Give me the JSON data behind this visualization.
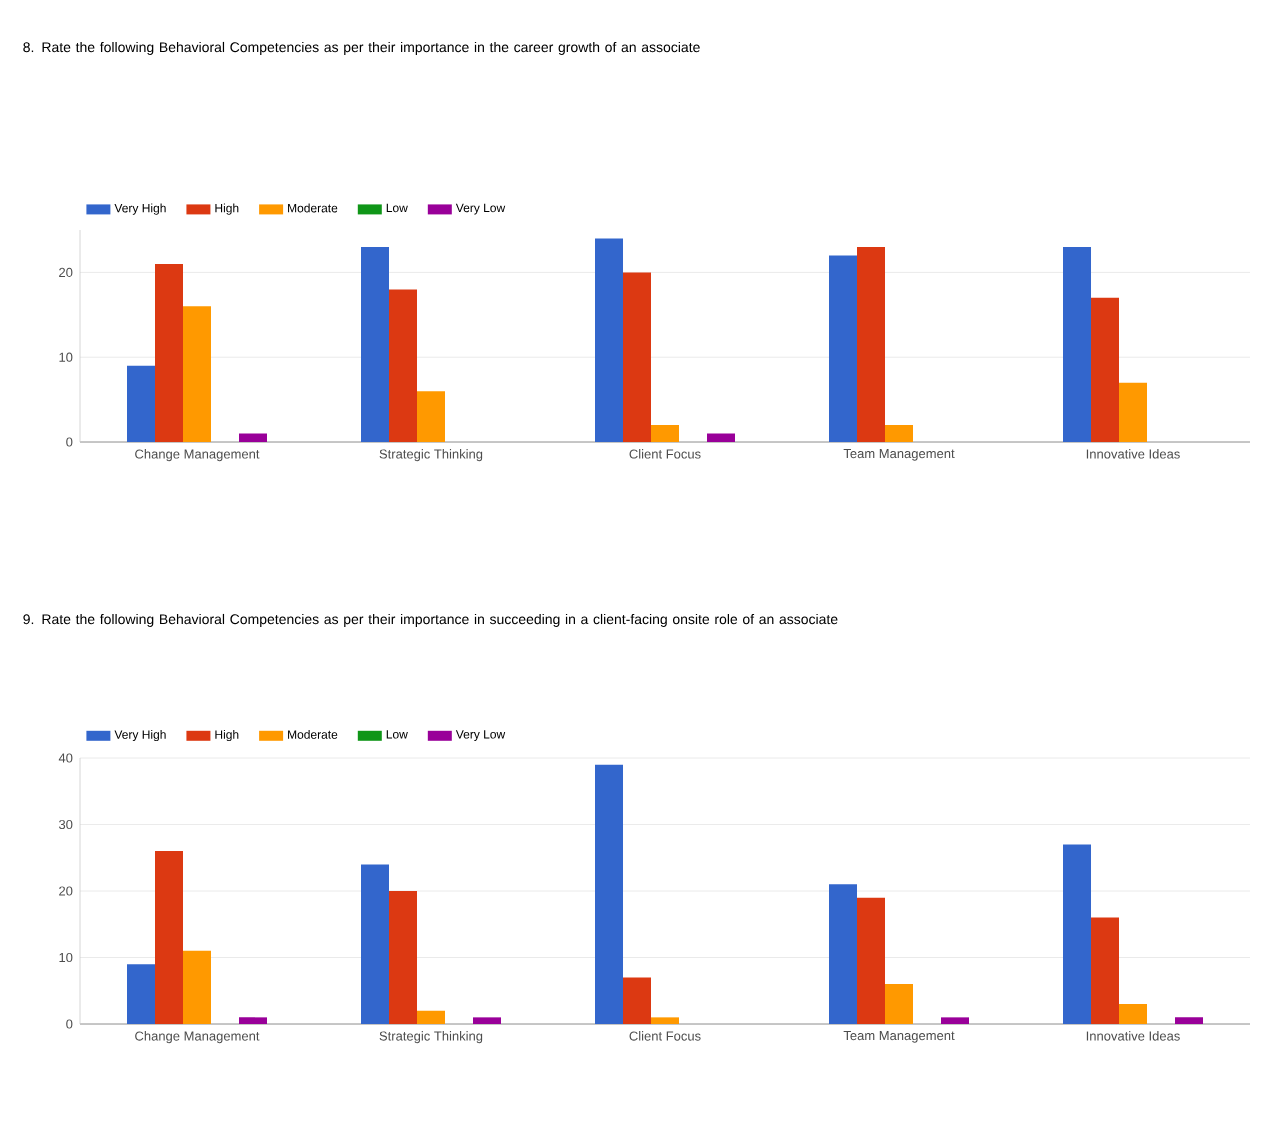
{
  "chart_data": [
    {
      "type": "bar",
      "title": "8. Rate the following Behavioral Competencies as per their importance in the career growth of an associate",
      "categories": [
        "Change Management",
        "Strategic Thinking",
        "Client Focus",
        "Team Management",
        "Innovative Ideas"
      ],
      "series": [
        {
          "name": "Very High",
          "color": "#3366cc",
          "values": [
            9,
            23,
            24,
            22,
            23
          ]
        },
        {
          "name": "High",
          "color": "#dc3912",
          "values": [
            21,
            18,
            20,
            23,
            17
          ]
        },
        {
          "name": "Moderate",
          "color": "#ff9900",
          "values": [
            16,
            6,
            2,
            2,
            7
          ]
        },
        {
          "name": "Low",
          "color": "#109618",
          "values": [
            0,
            0,
            0,
            0,
            0
          ]
        },
        {
          "name": "Very Low",
          "color": "#990099",
          "values": [
            1,
            0,
            1,
            0,
            0
          ]
        }
      ],
      "ylim": [
        0,
        25
      ],
      "yticks": [
        0,
        10,
        20
      ],
      "grid": "y",
      "legend": "top left"
    },
    {
      "type": "bar",
      "title": "9. Rate the following Behavioral Competencies as per their importance in succeeding in a client-facing onsite role of an associate",
      "categories": [
        "Change Management",
        "Strategic Thinking",
        "Client Focus",
        "Team Management",
        "Innovative Ideas"
      ],
      "series": [
        {
          "name": "Very High",
          "color": "#3366cc",
          "values": [
            9,
            24,
            39,
            21,
            27
          ]
        },
        {
          "name": "High",
          "color": "#dc3912",
          "values": [
            26,
            20,
            7,
            19,
            16
          ]
        },
        {
          "name": "Moderate",
          "color": "#ff9900",
          "values": [
            11,
            2,
            1,
            6,
            3
          ]
        },
        {
          "name": "Low",
          "color": "#109618",
          "values": [
            0,
            0,
            0,
            0,
            0
          ]
        },
        {
          "name": "Very Low",
          "color": "#990099",
          "values": [
            1,
            1,
            0,
            1,
            1
          ]
        }
      ],
      "ylim": [
        0,
        40
      ],
      "yticks": [
        0,
        10,
        20,
        30,
        40
      ],
      "grid": "y",
      "legend": "top left"
    }
  ]
}
